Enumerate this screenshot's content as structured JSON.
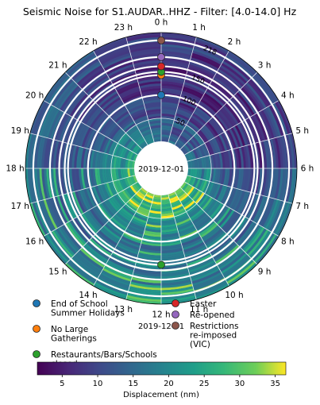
{
  "chart_data": {
    "type": "heatmap",
    "title": "Seismic Noise for S1.AUDAR..HHZ - Filter: [4.0-14.0] Hz",
    "angular_axis": {
      "direction": "clockwise",
      "zero_at": "top",
      "tick_labels": [
        "0 h",
        "1 h",
        "2 h",
        "3 h",
        "4 h",
        "5 h",
        "6 h",
        "7 h",
        "8 h",
        "9 h",
        "10 h",
        "11 h",
        "12 h",
        "13 h",
        "14 h",
        "15 h",
        "16 h",
        "17 h",
        "18 h",
        "19 h",
        "20 h",
        "21 h",
        "22 h",
        "23 h"
      ]
    },
    "radial_axis": {
      "center_label": "2019-12-01",
      "bottom_label": "2019-12-01",
      "tick_labels": [
        "50",
        "100",
        "150",
        "218"
      ]
    },
    "colorbar": {
      "label": "Displacement (nm)",
      "ticks": [
        5,
        10,
        15,
        20,
        25,
        30,
        35
      ],
      "range": [
        1.5,
        36.5
      ],
      "colormap": "viridis"
    },
    "rings": [
      {
        "inner": 1,
        "outer": 20,
        "value": 18
      },
      {
        "inner": 20,
        "outer": 35,
        "value": 14
      },
      {
        "inner": 35,
        "outer": 50,
        "value": 16
      },
      {
        "inner": 50,
        "outer": 75,
        "value": 10
      },
      {
        "inner": 75,
        "outer": 105,
        "value": 8
      },
      {
        "inner": 105,
        "outer": 140,
        "value": 6
      },
      {
        "inner": 140,
        "outer": 170,
        "value": 5
      },
      {
        "inner": 170,
        "outer": 200,
        "value": 7
      },
      {
        "inner": 200,
        "outer": 235,
        "value": 9
      }
    ],
    "hour_profile": [
      9,
      8,
      8,
      8,
      9,
      11,
      16,
      21,
      25,
      26,
      26,
      27,
      27,
      27,
      26,
      24,
      23,
      22,
      20,
      18,
      15,
      13,
      11,
      10
    ],
    "events": [
      {
        "label": "End of School Summer Holidays",
        "color": "#1f77b4",
        "day": 100
      },
      {
        "label": "No Large Gatherings",
        "color": "#ff7f0e",
        "day": 143
      },
      {
        "label": "Restaurants/Bars/Schools closed",
        "color": "#2ca02c",
        "day": 150
      },
      {
        "label": "Easter",
        "color": "#d62728",
        "day": 162
      },
      {
        "label": "Re-opened",
        "color": "#9467bd",
        "day": 182
      },
      {
        "label": "Restrictions re-imposed (VIC)",
        "color": "#8c564b",
        "day": 218
      }
    ],
    "bottom_marker": {
      "color": "#2ca02c",
      "day": 150
    }
  },
  "legend": {
    "left": [
      {
        "color": "#1f77b4",
        "lines": [
          "End of School",
          "Summer Holidays"
        ]
      },
      {
        "color": "#ff7f0e",
        "lines": [
          "No Large",
          "Gatherings"
        ]
      },
      {
        "color": "#2ca02c",
        "lines": [
          "Restaurants/Bars/Schools",
          "closed"
        ]
      }
    ],
    "right": [
      {
        "color": "#d62728",
        "lines": [
          "Easter"
        ]
      },
      {
        "color": "#9467bd",
        "lines": [
          "Re-opened"
        ]
      },
      {
        "color": "#8c564b",
        "lines": [
          "Restrictions",
          "re-imposed",
          "(VIC)"
        ]
      }
    ]
  }
}
